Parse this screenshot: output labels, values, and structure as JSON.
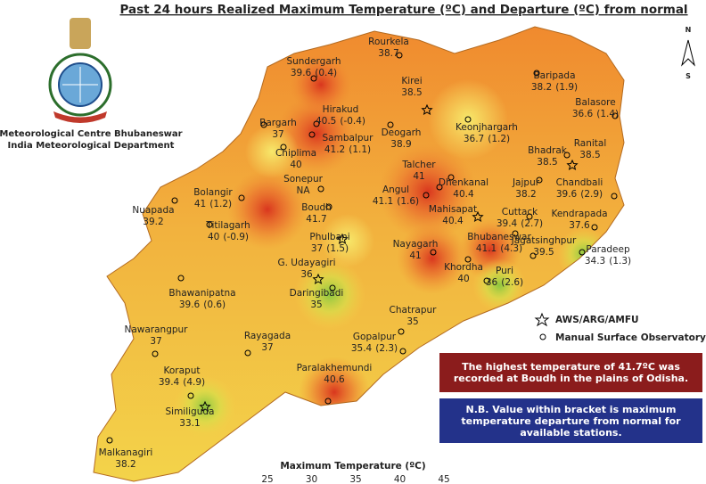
{
  "header": {
    "title": "Past 24 hours Realized Maximum Temperature (ºC) and Departure (ºC) from normal"
  },
  "org": {
    "lines": [
      "Meteorological Centre Bhubaneswar",
      "India Meteorological Department"
    ]
  },
  "compass": {
    "north": "N",
    "south": "S"
  },
  "stations": [
    {
      "name": "Rourkela",
      "temp": "38.7"
    },
    {
      "name": "Sundergarh",
      "temp": "39.6",
      "dep": "(0.4)"
    },
    {
      "name": "Kirei",
      "temp": "38.5"
    },
    {
      "name": "Baripada",
      "temp": "38.2",
      "dep": "(1.9)"
    },
    {
      "name": "Balasore",
      "temp": "36.6",
      "dep": "(1.4)"
    },
    {
      "name": "Hirakud",
      "temp": "40.5",
      "dep": "(-0.4)"
    },
    {
      "name": "Bargarh",
      "temp": "37"
    },
    {
      "name": "Deogarh",
      "temp": "38.9"
    },
    {
      "name": "Keonjhargarh",
      "temp": "36.7",
      "dep": "(1.2)"
    },
    {
      "name": "Sambalpur",
      "temp": "41.2",
      "dep": "(1.1)"
    },
    {
      "name": "Chiplima",
      "temp": "40"
    },
    {
      "name": "Bhadrak",
      "temp": "38.5"
    },
    {
      "name": "Ranital",
      "temp": "38.5"
    },
    {
      "name": "Talcher",
      "temp": "41"
    },
    {
      "name": "Sonepur",
      "temp": "NA"
    },
    {
      "name": "Bolangir",
      "temp": "41",
      "dep": "(1.2)"
    },
    {
      "name": "Dhenkanal",
      "temp": "40.4"
    },
    {
      "name": "Jajpur",
      "temp": "38.2"
    },
    {
      "name": "Chandbali",
      "temp": "39.6",
      "dep": "(2.9)"
    },
    {
      "name": "Angul",
      "temp": "41.1",
      "dep": "(1.6)"
    },
    {
      "name": "Nuapada",
      "temp": "39.2"
    },
    {
      "name": "Boudh",
      "temp": "41.7"
    },
    {
      "name": "Mahisapat",
      "temp": "40.4"
    },
    {
      "name": "Cuttack",
      "temp": "39.4",
      "dep": "(2.7)"
    },
    {
      "name": "Kendrapada",
      "temp": "37.6"
    },
    {
      "name": "Titilagarh",
      "temp": "40",
      "dep": "(-0.9)"
    },
    {
      "name": "Phulbani",
      "temp": "37",
      "dep": "(1.5)"
    },
    {
      "name": "Bhubaneswar",
      "temp": "41.1",
      "dep": "(4.3)"
    },
    {
      "name": "Jagatsinghpur",
      "temp": "39.5"
    },
    {
      "name": "Paradeep",
      "temp": "34.3",
      "dep": "(1.3)"
    },
    {
      "name": "Nayagarh",
      "temp": "41"
    },
    {
      "name": "G. Udayagiri",
      "temp": "36"
    },
    {
      "name": "Khordha",
      "temp": "40"
    },
    {
      "name": "Daringibadi",
      "temp": "35"
    },
    {
      "name": "Puri",
      "temp": "36",
      "dep": "(2.6)"
    },
    {
      "name": "Bhawanipatna",
      "temp": "39.6",
      "dep": "(0.6)"
    },
    {
      "name": "Chatrapur",
      "temp": "35"
    },
    {
      "name": "Nawarangpur",
      "temp": "37"
    },
    {
      "name": "Rayagada",
      "temp": "37"
    },
    {
      "name": "Gopalpur",
      "temp": "35.4",
      "dep": "(2.3)"
    },
    {
      "name": "Koraput",
      "temp": "39.4",
      "dep": "(4.9)"
    },
    {
      "name": "Paralakhemundi",
      "temp": "40.6"
    },
    {
      "name": "Similiguda",
      "temp": "33.1"
    },
    {
      "name": "Malkanagiri",
      "temp": "38.2"
    }
  ],
  "legend": {
    "items": [
      "AWS/ARG/AMFU",
      "Manual Surface Observatory"
    ]
  },
  "notes": [
    "The highest temperature of 41.7ºC was recorded at Boudh in the plains of Odisha.",
    "N.B. Value within bracket is maximum temperature departure from normal for available stations."
  ],
  "colorbar": {
    "title": "Maximum Temperature (ºC)",
    "ticks": [
      "25",
      "30",
      "35",
      "40",
      "45"
    ]
  }
}
